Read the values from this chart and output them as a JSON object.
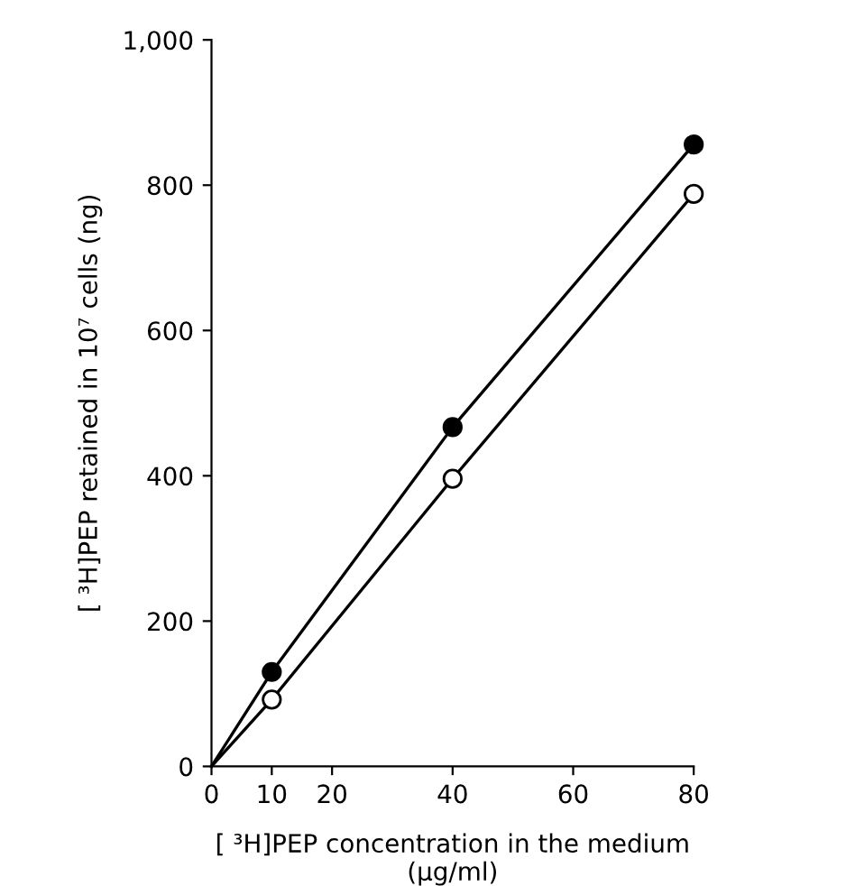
{
  "chart_data": {
    "type": "line",
    "xlabel": "[ ³H]PEP concentration in the medium\n(μg/ml)",
    "ylabel": "[ ³H]PEP retained in 10⁷ cells (ng)",
    "xlim": [
      0,
      80
    ],
    "xticks": [
      0,
      10,
      20,
      40,
      60,
      80
    ],
    "ylim": [
      0,
      1000
    ],
    "yticks": [
      0,
      200,
      400,
      600,
      800,
      {
        "value": 1000,
        "label": "1,000"
      }
    ],
    "grid": false,
    "legend": false,
    "marker": "circle",
    "line_style": "solid",
    "series": [
      {
        "color": "#000000",
        "x": [
          0,
          10,
          40,
          80
        ],
        "values": [
          0,
          130,
          467,
          856
        ]
      },
      {
        "color": "#000000",
        "x": [
          0,
          10,
          40,
          80
        ],
        "values": [
          0,
          92,
          396,
          788
        ]
      }
    ]
  }
}
